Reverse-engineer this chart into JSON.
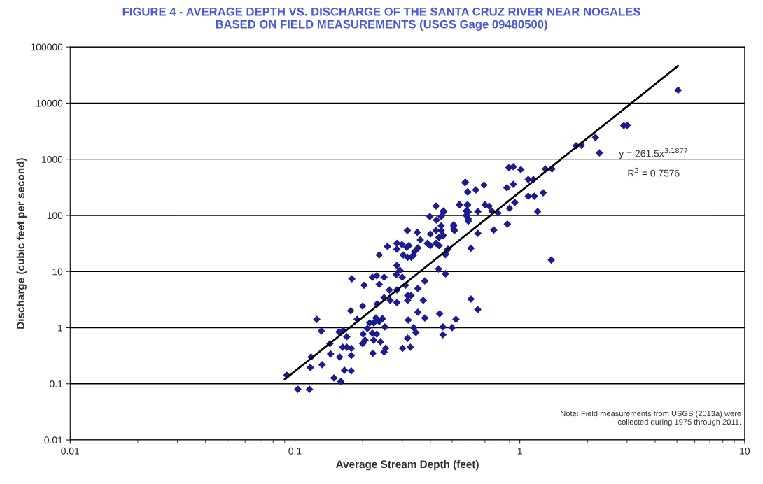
{
  "chart_data": {
    "type": "scatter",
    "title": "FIGURE 4 - AVERAGE DEPTH VS. DISCHARGE OF THE SANTA CRUZ RIVER NEAR NOGALES\nBASED ON FIELD MEASUREMENTS (USGS Gage 09480500)",
    "xlabel": "Average Stream Depth (feet)",
    "ylabel": "Discharge (cubic feet per second)",
    "log": "xy",
    "grid": "y",
    "xlim": [
      0.01,
      10
    ],
    "xticks": [
      0.01,
      0.1,
      1,
      10
    ],
    "ylim": [
      0.01,
      100000
    ],
    "yticks": [
      0.01,
      0.1,
      1,
      10,
      100,
      1000,
      10000,
      100000
    ],
    "series": [
      {
        "color": "#1c1c8f",
        "marker": "diamond",
        "x": [
          5.06,
          2.9,
          3.0,
          1.78,
          1.88,
          2.17,
          2.26,
          0.895,
          0.935,
          1.01,
          1.3,
          1.39,
          1.09,
          1.15,
          0.573,
          0.693,
          0.637,
          0.588,
          0.876,
          0.935,
          1.09,
          1.16,
          1.27,
          1.2,
          0.538,
          0.585,
          0.578,
          0.578,
          0.59,
          0.651,
          0.7,
          0.73,
          0.75,
          0.8,
          0.9,
          0.95,
          0.88,
          0.766,
          0.651,
          0.508,
          0.508,
          0.606,
          0.467,
          1.38,
          0.457,
          0.092,
          0.103,
          0.116,
          0.117,
          0.118,
          0.132,
          0.149,
          0.16,
          0.125,
          0.131,
          0.143,
          0.144,
          0.158,
          0.166,
          0.178,
          0.157,
          0.164,
          0.163,
          0.17,
          0.178,
          0.178,
          0.17,
          0.179,
          0.203,
          0.177,
          0.189,
          0.2,
          0.221,
          0.231,
          0.237,
          0.249,
          0.201,
          0.205,
          0.21,
          0.215,
          0.221,
          0.224,
          0.229,
          0.231,
          0.237,
          0.245,
          0.224,
          0.2,
          0.222,
          0.24,
          0.253,
          0.249,
          0.251,
          0.232,
          0.249,
          0.263,
          0.265,
          0.284,
          0.284,
          0.282,
          0.293,
          0.3,
          0.284,
          0.31,
          0.317,
          0.317,
          0.328,
          0.352,
          0.378,
          0.372,
          0.319,
          0.352,
          0.378,
          0.337,
          0.345,
          0.317,
          0.301,
          0.326,
          0.435,
          0.467,
          0.44,
          0.455,
          0.455,
          0.5,
          0.52,
          0.606,
          0.65,
          0.237,
          0.258,
          0.284,
          0.284,
          0.299,
          0.314,
          0.321,
          0.303,
          0.317,
          0.329,
          0.337,
          0.341,
          0.352,
          0.316,
          0.35,
          0.361,
          0.388,
          0.4,
          0.4,
          0.424,
          0.424,
          0.437,
          0.437,
          0.447,
          0.457,
          0.467,
          0.479,
          0.447,
          0.447,
          0.459,
          0.424,
          0.398,
          0.426,
          0.508,
          0.512,
          0.54,
          0.57,
          0.585,
          0.585,
          0.59,
          0.59
        ],
        "values": [
          17000,
          3980,
          4000,
          1740,
          1780,
          2440,
          1300,
          711,
          735,
          652,
          671,
          671,
          437,
          437,
          389,
          347,
          284,
          261,
          311,
          357,
          219,
          219,
          253,
          117,
          155,
          155,
          120,
          100,
          87,
          117,
          155,
          147,
          120,
          110,
          134,
          170,
          70,
          55,
          48,
          68,
          57,
          26,
          20,
          16,
          120,
          0.142,
          0.08,
          0.08,
          0.195,
          0.3,
          0.219,
          0.127,
          0.11,
          1.41,
          0.87,
          0.52,
          0.34,
          0.3,
          0.174,
          0.17,
          0.84,
          0.89,
          0.45,
          0.45,
          0.43,
          0.32,
          0.69,
          7.4,
          5.7,
          2.0,
          1.41,
          2.43,
          7.9,
          8.4,
          5.9,
          7.9,
          0.77,
          0.6,
          0.97,
          1.22,
          0.8,
          1.22,
          1.49,
          0.77,
          1.29,
          1.45,
          0.6,
          0.52,
          0.35,
          0.56,
          0.43,
          0.37,
          1.03,
          2.65,
          3.43,
          4.7,
          3.06,
          2.8,
          4.7,
          8.8,
          10.5,
          7.9,
          12.8,
          5.7,
          3.74,
          3.06,
          3.74,
          5.0,
          6.8,
          3.06,
          1.37,
          1.88,
          1.49,
          1.0,
          0.82,
          0.65,
          0.43,
          0.45,
          11.1,
          9.1,
          1.77,
          1.03,
          0.75,
          1.0,
          1.41,
          3.24,
          2.1,
          19.7,
          27.9,
          31.8,
          25.0,
          30.3,
          27.0,
          28.9,
          19.7,
          17.9,
          17.9,
          19.7,
          22.8,
          26.3,
          53.8,
          49.8,
          36.7,
          31.8,
          28.9,
          46.6,
          53.8,
          31.8,
          28.9,
          40.4,
          53.8,
          43.7,
          20.7,
          25.0,
          65.2,
          95.5,
          116,
          147,
          95.5,
          82.8,
          65.2,
          53.8,
          154,
          382,
          261,
          154,
          116,
          78.9
        ]
      },
      {
        "type": "line",
        "color": "#000000",
        "x": [
          0.09,
          5.06
        ],
        "values": [
          0.12,
          46000
        ]
      }
    ],
    "annotations": [
      "y = 261.5x$^{3.1877}$",
      "R$^{2}$ = 0.7576",
      "Note: Field measurements from USGS (2013a) were\ncollected during 1975 through 2011."
    ]
  }
}
